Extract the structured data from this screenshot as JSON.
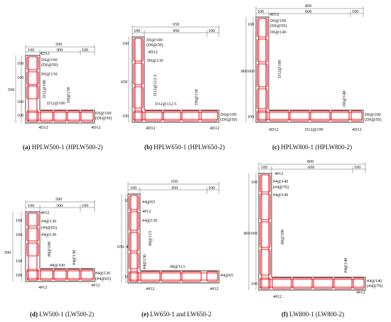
{
  "panels": [
    {
      "id": "a",
      "letter": "(a)",
      "caption": "HPLW500-1 (HPLW500-2)",
      "dims_top": [
        "500",
        "100",
        "300",
        "100"
      ],
      "dims_left": [
        "100",
        "100",
        "500",
        "100",
        "100"
      ],
      "labels": [
        "4D12",
        "D6@100",
        "(D6@50)",
        "D6@130",
        "D12@100",
        "D12@100",
        "D6@130",
        "D6@100",
        "(D6@50)",
        "4D12",
        "4D12"
      ]
    },
    {
      "id": "b",
      "letter": "(b)",
      "caption": "HPLW650-1 (HPLW650-2)",
      "dims_top": [
        "650",
        "100",
        "450",
        "100"
      ],
      "dims_left": [
        "100",
        "650",
        "450",
        "100"
      ],
      "labels": [
        "D6@100",
        "(D6@50)",
        "4D12",
        "D6@130",
        "D12@112.5",
        "D12@112.5",
        "D6@130",
        "D6@100",
        "(D6@50)",
        "4D12",
        "4D12"
      ]
    },
    {
      "id": "c",
      "letter": "(c)",
      "caption": "HPLW800-1 (HPLW800-2)",
      "dims_top": [
        "800",
        "100",
        "600",
        "100"
      ],
      "dims_left": [
        "100",
        "800",
        "600",
        "100"
      ],
      "labels": [
        "4D12",
        "D6@100",
        "(D6@50)",
        "D6@140",
        "D12@100",
        "D6@140",
        "D6@100",
        "(D6@50)",
        "4D12",
        "D12@100",
        "4D12"
      ]
    },
    {
      "id": "d",
      "letter": "(d)",
      "caption": "LW500-1 (LW500-2)",
      "dims_top": [
        "500",
        "100",
        "300",
        "100"
      ],
      "dims_left": [
        "100",
        "100",
        "500",
        "100",
        "100"
      ],
      "labels": [
        "4#12",
        "#4@130",
        "(#4@65)",
        "#4@130",
        "#8@100",
        "#8@100",
        "#4@130",
        "#4@130",
        "(#4@65)",
        "4#12",
        "4#12"
      ]
    },
    {
      "id": "e",
      "letter": "(e)",
      "caption": "LW650-1 and LW650-2",
      "dims_top": [
        "650",
        "100",
        "450",
        "100"
      ],
      "dims_left": [
        "100",
        "650",
        "450",
        "100"
      ],
      "labels": [
        "#4@65",
        "4#12",
        "#4@130",
        "#8@113",
        "#4@130",
        "#8@113",
        "#4@65",
        "4#12",
        "4#12"
      ]
    },
    {
      "id": "f",
      "letter": "(f)",
      "caption": "LW800-1 (LW800-2)",
      "dims_top": [
        "800",
        "100",
        "600",
        "100"
      ],
      "dims_left": [
        "100",
        "800",
        "600",
        "100"
      ],
      "labels": [
        "4#12",
        "#4@140",
        "(#4@70)",
        "#4@140",
        "#8@100",
        "#4@140",
        "#4@140",
        "(#4@70)",
        "4#12",
        "4#12"
      ]
    }
  ]
}
